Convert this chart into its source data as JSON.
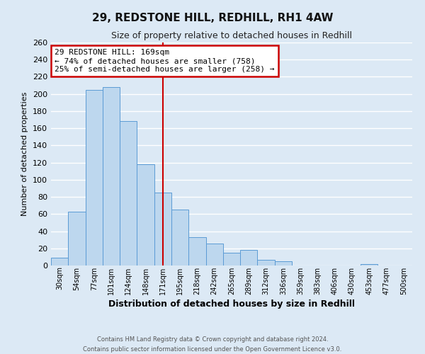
{
  "title": "29, REDSTONE HILL, REDHILL, RH1 4AW",
  "subtitle": "Size of property relative to detached houses in Redhill",
  "xlabel": "Distribution of detached houses by size in Redhill",
  "ylabel": "Number of detached properties",
  "bar_labels": [
    "30sqm",
    "54sqm",
    "77sqm",
    "101sqm",
    "124sqm",
    "148sqm",
    "171sqm",
    "195sqm",
    "218sqm",
    "242sqm",
    "265sqm",
    "289sqm",
    "312sqm",
    "336sqm",
    "359sqm",
    "383sqm",
    "406sqm",
    "430sqm",
    "453sqm",
    "477sqm",
    "500sqm"
  ],
  "bar_values": [
    9,
    63,
    205,
    208,
    168,
    118,
    85,
    65,
    33,
    26,
    15,
    18,
    7,
    5,
    0,
    0,
    0,
    0,
    2,
    0,
    0
  ],
  "bar_color": "#bdd7ee",
  "bar_edge_color": "#5b9bd5",
  "marker_index": 6,
  "marker_color": "#cc0000",
  "annotation_title": "29 REDSTONE HILL: 169sqm",
  "annotation_line1": "← 74% of detached houses are smaller (758)",
  "annotation_line2": "25% of semi-detached houses are larger (258) →",
  "ylim": [
    0,
    260
  ],
  "yticks": [
    0,
    20,
    40,
    60,
    80,
    100,
    120,
    140,
    160,
    180,
    200,
    220,
    240,
    260
  ],
  "footer1": "Contains HM Land Registry data © Crown copyright and database right 2024.",
  "footer2": "Contains public sector information licensed under the Open Government Licence v3.0.",
  "background_color": "#dce9f5",
  "plot_bg_color": "#dce9f5",
  "grid_color": "#ffffff",
  "annotation_box_color": "#ffffff",
  "annotation_box_edge": "#cc0000"
}
